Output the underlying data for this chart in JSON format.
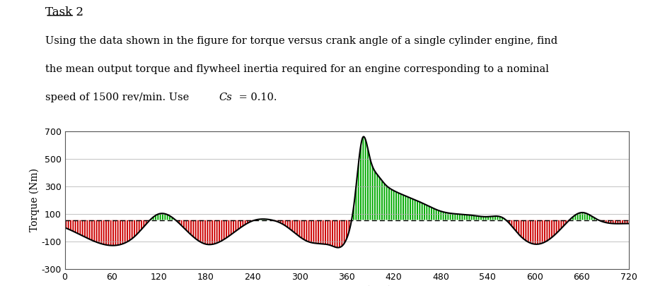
{
  "title": "Task 2",
  "text_line1": "Using the data shown in the figure for torque versus crank angle of a single cylinder engine, find",
  "text_line2": "the mean output torque and flywheel inertia required for an engine corresponding to a nominal",
  "text_line3": "speed of 1500 rev/min. Use Cs = 0.10.",
  "xlabel": "Crank angle (deg)",
  "ylabel": "Torque (Nm)",
  "ylim": [
    -300,
    700
  ],
  "xlim": [
    0,
    720
  ],
  "yticks": [
    -300,
    -100,
    100,
    300,
    500,
    700
  ],
  "xticks": [
    0,
    60,
    120,
    180,
    240,
    300,
    360,
    420,
    480,
    540,
    600,
    660,
    720
  ],
  "mean_torque": 55,
  "background_color": "#ffffff",
  "line_color": "#000000",
  "fill_above_color": "#00aa00",
  "fill_below_color": "#cc0000",
  "mean_line_color": "#000000"
}
